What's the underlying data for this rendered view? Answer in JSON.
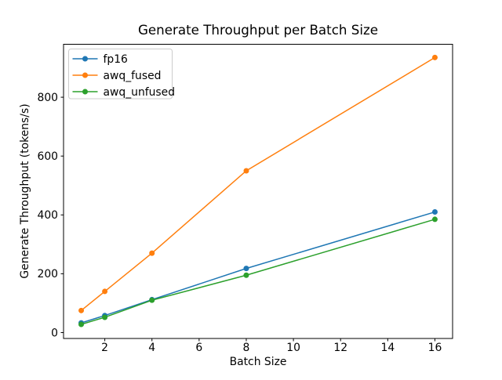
{
  "chart_data": {
    "type": "line",
    "title": "Generate Throughput per Batch Size",
    "xlabel": "Batch Size",
    "ylabel": "Generate Throughput (tokens/s)",
    "x": [
      1,
      2,
      4,
      8,
      16
    ],
    "series": [
      {
        "name": "fp16",
        "color": "#1f77b4",
        "values": [
          33,
          58,
          112,
          218,
          410
        ]
      },
      {
        "name": "awq_fused",
        "color": "#ff7f0e",
        "values": [
          75,
          140,
          270,
          550,
          935
        ]
      },
      {
        "name": "awq_unfused",
        "color": "#2ca02c",
        "values": [
          28,
          52,
          110,
          195,
          385
        ]
      }
    ],
    "xticks": [
      2,
      4,
      6,
      8,
      10,
      12,
      14,
      16
    ],
    "yticks": [
      0,
      200,
      400,
      600,
      800
    ],
    "xlim": [
      0.25,
      16.75
    ],
    "ylim": [
      -20,
      980
    ],
    "grid": false,
    "marker": "o",
    "legend_position": "upper left",
    "colors": {
      "background": "#ffffff",
      "spine": "#000000",
      "legend_border": "#cccccc"
    }
  }
}
